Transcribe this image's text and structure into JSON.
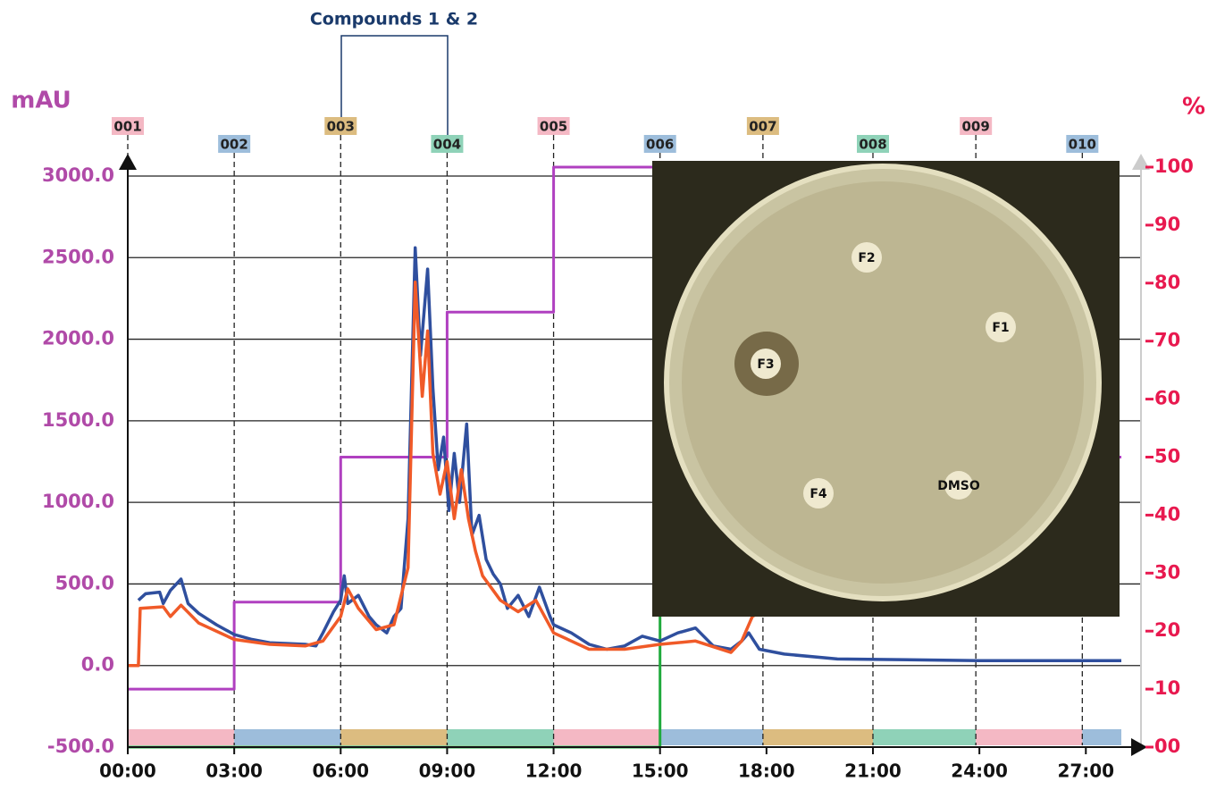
{
  "chart_data": {
    "type": "line",
    "annotation": "Compounds 1 & 2",
    "ylabel": "mAU",
    "y2label": "%",
    "xlim": [
      0,
      28
    ],
    "ylim": [
      -500,
      3000
    ],
    "y2lim": [
      0,
      100
    ],
    "xticks": [
      {
        "value": 0,
        "label": "00:00"
      },
      {
        "value": 3,
        "label": "03:00"
      },
      {
        "value": 6,
        "label": "06:00"
      },
      {
        "value": 9,
        "label": "09:00"
      },
      {
        "value": 12,
        "label": "12:00"
      },
      {
        "value": 15,
        "label": "15:00"
      },
      {
        "value": 18,
        "label": "18:00"
      },
      {
        "value": 21,
        "label": "21:00"
      },
      {
        "value": 24,
        "label": "24:00"
      },
      {
        "value": 27,
        "label": "27:00"
      }
    ],
    "yticks": [
      {
        "value": -500,
        "label": "-500.0"
      },
      {
        "value": 0,
        "label": "0.0"
      },
      {
        "value": 500,
        "label": "500.0"
      },
      {
        "value": 1000,
        "label": "1000.0"
      },
      {
        "value": 1500,
        "label": "1500.0"
      },
      {
        "value": 2000,
        "label": "2000.0"
      },
      {
        "value": 2500,
        "label": "2500.0"
      },
      {
        "value": 3000,
        "label": "3000.0"
      }
    ],
    "y2ticks": [
      {
        "value": 0,
        "label": "00"
      },
      10,
      20,
      30,
      40,
      50,
      60,
      70,
      80,
      90,
      100
    ],
    "grid": true,
    "fractions": [
      {
        "label": "001",
        "x": 0,
        "color": "#f4b8c4"
      },
      {
        "label": "002",
        "x": 3,
        "color": "#9dbddb"
      },
      {
        "label": "003",
        "x": 6,
        "color": "#dcbc80"
      },
      {
        "label": "004",
        "x": 9,
        "color": "#8fd2b8"
      },
      {
        "label": "005",
        "x": 12,
        "color": "#f4b8c4"
      },
      {
        "label": "006",
        "x": 15,
        "color": "#9dbddb"
      },
      {
        "label": "007",
        "x": 17.9,
        "color": "#dcbc80"
      },
      {
        "label": "008",
        "x": 21,
        "color": "#8fd2b8"
      },
      {
        "label": "009",
        "x": 23.9,
        "color": "#f4b8c4"
      },
      {
        "label": "010",
        "x": 26.9,
        "color": "#9dbddb"
      }
    ],
    "series": [
      {
        "color": "#2f4f9e",
        "x": [
          0.3,
          0.5,
          0.9,
          1.0,
          1.2,
          1.5,
          1.7,
          2.0,
          2.5,
          3.0,
          3.5,
          4.0,
          5.0,
          5.3,
          5.5,
          5.8,
          6.0,
          6.1,
          6.2,
          6.5,
          6.8,
          7.0,
          7.3,
          7.5,
          7.7,
          7.9,
          8.1,
          8.25,
          8.45,
          8.6,
          8.75,
          8.9,
          9.05,
          9.2,
          9.35,
          9.55,
          9.7,
          9.9,
          10.1,
          10.3,
          10.5,
          10.7,
          11.0,
          11.3,
          11.6,
          11.9,
          12.0,
          12.5,
          13.0,
          13.5,
          14.0,
          14.5,
          15.0,
          15.5,
          16.0,
          16.5,
          17.0,
          17.3,
          17.5,
          17.8,
          18.5,
          20.0,
          24.0,
          28.0
        ],
        "values": [
          400,
          440,
          450,
          380,
          460,
          530,
          380,
          320,
          250,
          190,
          160,
          140,
          130,
          120,
          200,
          330,
          400,
          550,
          380,
          430,
          300,
          250,
          200,
          300,
          350,
          900,
          2560,
          1900,
          2430,
          1700,
          1200,
          1400,
          950,
          1300,
          1000,
          1480,
          800,
          920,
          650,
          560,
          500,
          350,
          430,
          300,
          480,
          300,
          250,
          200,
          130,
          100,
          120,
          180,
          150,
          200,
          230,
          120,
          100,
          150,
          200,
          100,
          70,
          40,
          30,
          30
        ]
      },
      {
        "color": "#f05a28",
        "x": [
          0,
          0.3,
          0.35,
          1.0,
          1.2,
          1.5,
          2.0,
          3.0,
          4.0,
          5.0,
          5.5,
          6.0,
          6.2,
          6.5,
          7.0,
          7.5,
          7.9,
          8.1,
          8.3,
          8.45,
          8.6,
          8.8,
          9.0,
          9.2,
          9.4,
          9.6,
          9.8,
          10.0,
          10.5,
          11.0,
          11.5,
          12.0,
          12.5,
          13.0,
          14.0,
          15.0,
          16.0,
          17.0,
          17.3,
          17.6,
          18.0,
          27.8
        ],
        "values": [
          0,
          0,
          350,
          360,
          300,
          370,
          260,
          160,
          130,
          120,
          150,
          300,
          470,
          350,
          220,
          250,
          600,
          2350,
          1650,
          2050,
          1300,
          1050,
          1250,
          900,
          1200,
          900,
          700,
          550,
          400,
          330,
          400,
          200,
          150,
          100,
          100,
          130,
          150,
          80,
          150,
          300,
          350,
          550
        ]
      },
      {
        "color": "#b040c0",
        "axis": "y2",
        "x": [
          0,
          3,
          3,
          6,
          6,
          9,
          9,
          12,
          12,
          20,
          20,
          28
        ],
        "values": [
          10,
          10,
          25,
          25,
          50,
          50,
          75,
          75,
          100,
          100,
          50,
          50
        ]
      },
      {
        "color": "#1faa3c",
        "axis": "y2",
        "x": [
          0,
          15,
          15
        ],
        "values": [
          0,
          0,
          100
        ]
      }
    ],
    "inset_labels": [
      "F1",
      "F2",
      "F3",
      "F4",
      "DMSO"
    ]
  }
}
